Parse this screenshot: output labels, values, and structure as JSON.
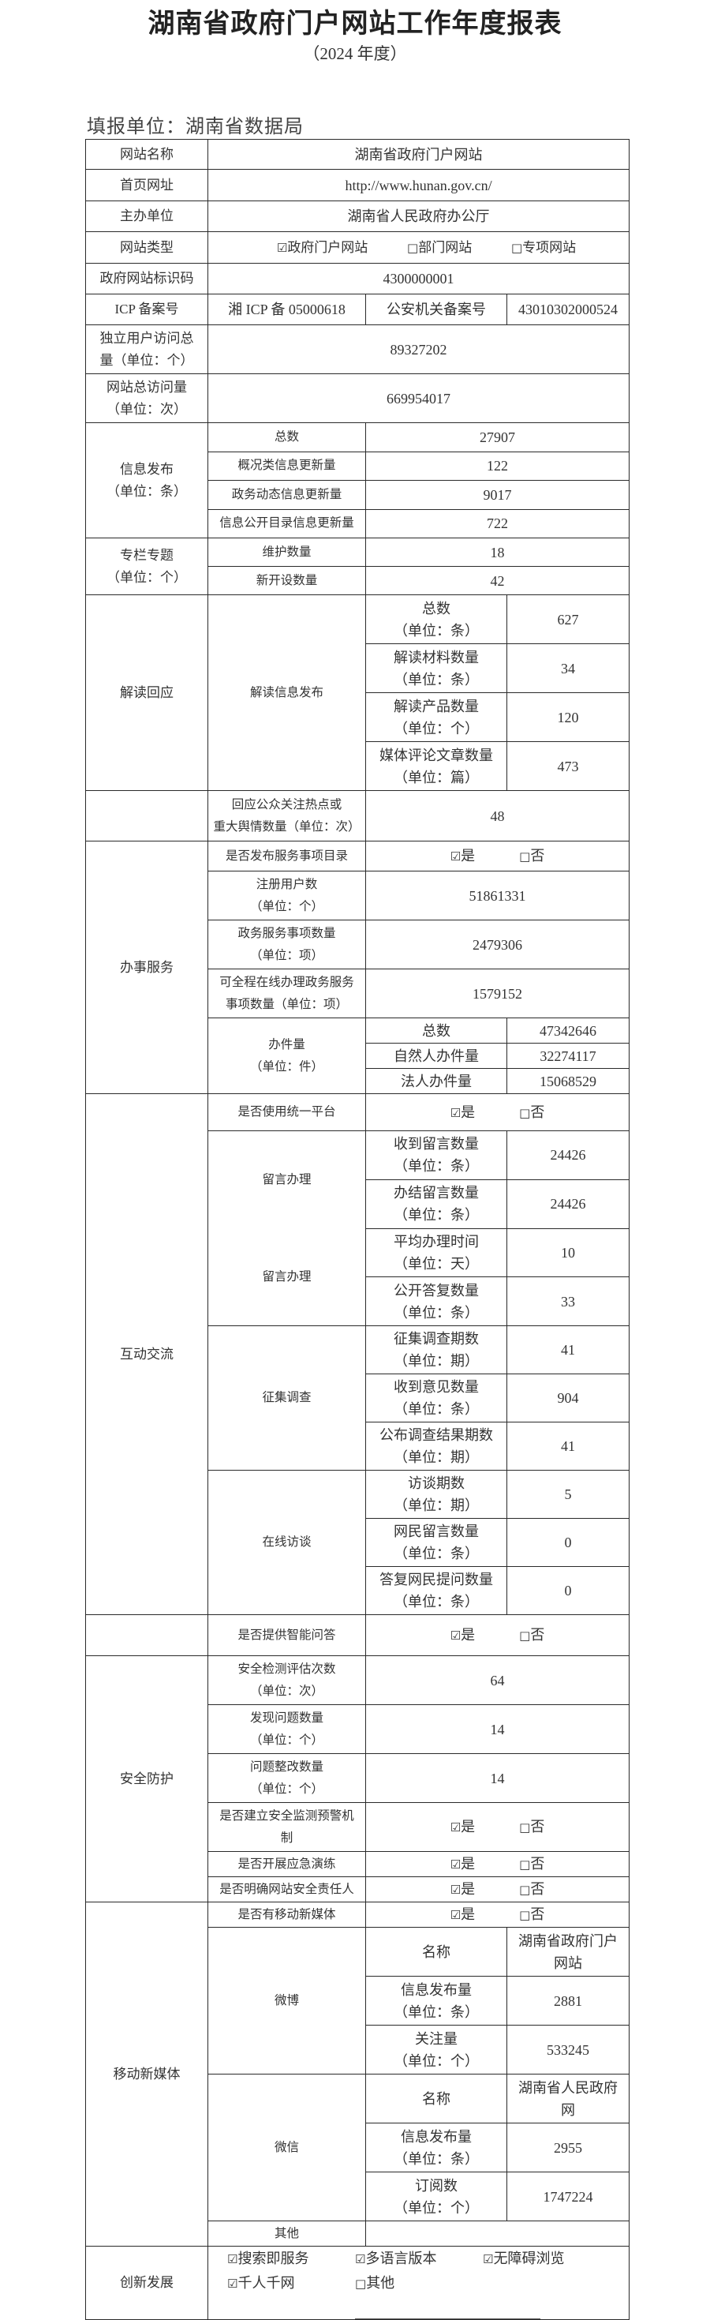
{
  "title": "湖南省政府门户网站工作年度报表",
  "subtitle": "（2024 年度）",
  "reporting_unit": "填报单位：湖南省数据局",
  "yesno": {
    "yes": "是",
    "no": "否"
  },
  "basic": {
    "site_name": {
      "label": "网站名称",
      "value": "湖南省政府门户网站"
    },
    "homepage": {
      "label": "首页网址",
      "value": "http://www.hunan.gov.cn/"
    },
    "host": {
      "label": "主办单位",
      "value": "湖南省人民政府办公厅"
    },
    "site_type": {
      "label": "网站类型",
      "options": [
        {
          "label": "政府门户网站",
          "checked": true
        },
        {
          "label": "部门网站",
          "checked": false
        },
        {
          "label": "专项网站",
          "checked": false
        }
      ]
    },
    "site_code": {
      "label": "政府网站标识码",
      "value": "4300000001"
    },
    "icp": {
      "label": "ICP 备案号",
      "value": "湘 ICP 备 05000618",
      "police_label": "公安机关备案号",
      "police_value": "43010302000524"
    },
    "unique_visitors": {
      "label": "独立用户访问总\n量（单位：个）",
      "value": "89327202"
    },
    "total_visits": {
      "label": "网站总访问量\n（单位：次）",
      "value": "669954017"
    }
  },
  "info_release": {
    "label": "信息发布\n（单位：条）",
    "rows": [
      {
        "label": "总数",
        "value": "27907"
      },
      {
        "label": "概况类信息更新量",
        "value": "122"
      },
      {
        "label": "政务动态信息更新量",
        "value": "9017"
      },
      {
        "label": "信息公开目录信息更新量",
        "value": "722"
      }
    ]
  },
  "columns": {
    "label": "专栏专题\n（单位：个）",
    "rows": [
      {
        "label": "维护数量",
        "value": "18"
      },
      {
        "label": "新开设数量",
        "value": "42"
      }
    ]
  },
  "interpretation": {
    "label": "解读回应",
    "sub_label": "解读信息发布",
    "rows": [
      {
        "label": "总数\n（单位：条）",
        "value": "627"
      },
      {
        "label": "解读材料数量\n（单位：条）",
        "value": "34"
      },
      {
        "label": "解读产品数量\n（单位：个）",
        "value": "120"
      },
      {
        "label": "媒体评论文章数量\n（单位：篇）",
        "value": "473"
      }
    ],
    "response": {
      "label": "回应公众关注热点或\n重大舆情数量（单位：次）",
      "value": "48"
    }
  },
  "services": {
    "label": "办事服务",
    "catalog": {
      "label": "是否发布服务事项目录",
      "yes": true
    },
    "rows": [
      {
        "label": "注册用户数\n（单位：个）",
        "value": "51861331"
      },
      {
        "label": "政务服务事项数量\n（单位：项）",
        "value": "2479306"
      },
      {
        "label": "可全程在线办理政务服务\n事项数量（单位：项）",
        "value": "1579152"
      }
    ],
    "cases": {
      "label": "办件量\n（单位：件）",
      "rows": [
        {
          "label": "总数",
          "value": "47342646"
        },
        {
          "label": "自然人办件量",
          "value": "32274117"
        },
        {
          "label": "法人办件量",
          "value": "15068529"
        }
      ]
    }
  },
  "interaction": {
    "label": "互动交流",
    "platform": {
      "label": "是否使用统一平台",
      "yes": true
    },
    "messages": {
      "labels": [
        "留言办理",
        "留言办理"
      ],
      "rows": [
        {
          "label": "收到留言数量\n（单位：条）",
          "value": "24426"
        },
        {
          "label": "办结留言数量\n（单位：条）",
          "value": "24426"
        },
        {
          "label": "平均办理时间\n（单位：天）",
          "value": "10"
        },
        {
          "label": "公开答复数量\n（单位：条）",
          "value": "33"
        }
      ]
    },
    "surveys": {
      "label": "征集调查",
      "rows": [
        {
          "label": "征集调查期数\n（单位：期）",
          "value": "41"
        },
        {
          "label": "收到意见数量\n（单位：条）",
          "value": "904"
        },
        {
          "label": "公布调查结果期数\n（单位：期）",
          "value": "41"
        }
      ]
    },
    "interviews": {
      "label": "在线访谈",
      "rows": [
        {
          "label": "访谈期数\n（单位：期）",
          "value": "5"
        },
        {
          "label": "网民留言数量\n（单位：条）",
          "value": "0"
        },
        {
          "label": "答复网民提问数量\n（单位：条）",
          "value": "0"
        }
      ]
    },
    "smart_qa": {
      "label": "是否提供智能问答",
      "yes": true
    }
  },
  "security": {
    "label": "安全防护",
    "rows": [
      {
        "label": "安全检测评估次数\n（单位：次）",
        "value": "64"
      },
      {
        "label": "发现问题数量\n（单位：个）",
        "value": "14"
      },
      {
        "label": "问题整改数量\n（单位：个）",
        "value": "14"
      }
    ],
    "checks": [
      {
        "label": "是否建立安全监测预警机\n制",
        "yes": true
      },
      {
        "label": "是否开展应急演练",
        "yes": true
      },
      {
        "label": "是否明确网站安全责任人",
        "yes": true
      }
    ]
  },
  "mobile": {
    "label": "移动新媒体",
    "has": {
      "label": "是否有移动新媒体",
      "yes": true
    },
    "weibo": {
      "label": "微博",
      "rows": [
        {
          "label": "名称",
          "value": "湖南省政府门户\n网站"
        },
        {
          "label": "信息发布量\n（单位：条）",
          "value": "2881"
        },
        {
          "label": "关注量\n（单位：个）",
          "value": "533245"
        }
      ]
    },
    "wechat": {
      "label": "微信",
      "rows": [
        {
          "label": "名称",
          "value": "湖南省人民政府\n网"
        },
        {
          "label": "信息发布量\n（单位：条）",
          "value": "2955"
        },
        {
          "label": "订阅数\n（单位：个）",
          "value": "1747224"
        }
      ]
    },
    "other": {
      "label": "其他",
      "value": ""
    }
  },
  "innovation": {
    "label": "创新发展",
    "options": [
      {
        "label": "搜索即服务",
        "checked": true
      },
      {
        "label": "多语言版本",
        "checked": true
      },
      {
        "label": "无障碍浏览",
        "checked": true
      },
      {
        "label": "千人千网",
        "checked": true
      },
      {
        "label": "其他",
        "checked": false
      }
    ]
  }
}
